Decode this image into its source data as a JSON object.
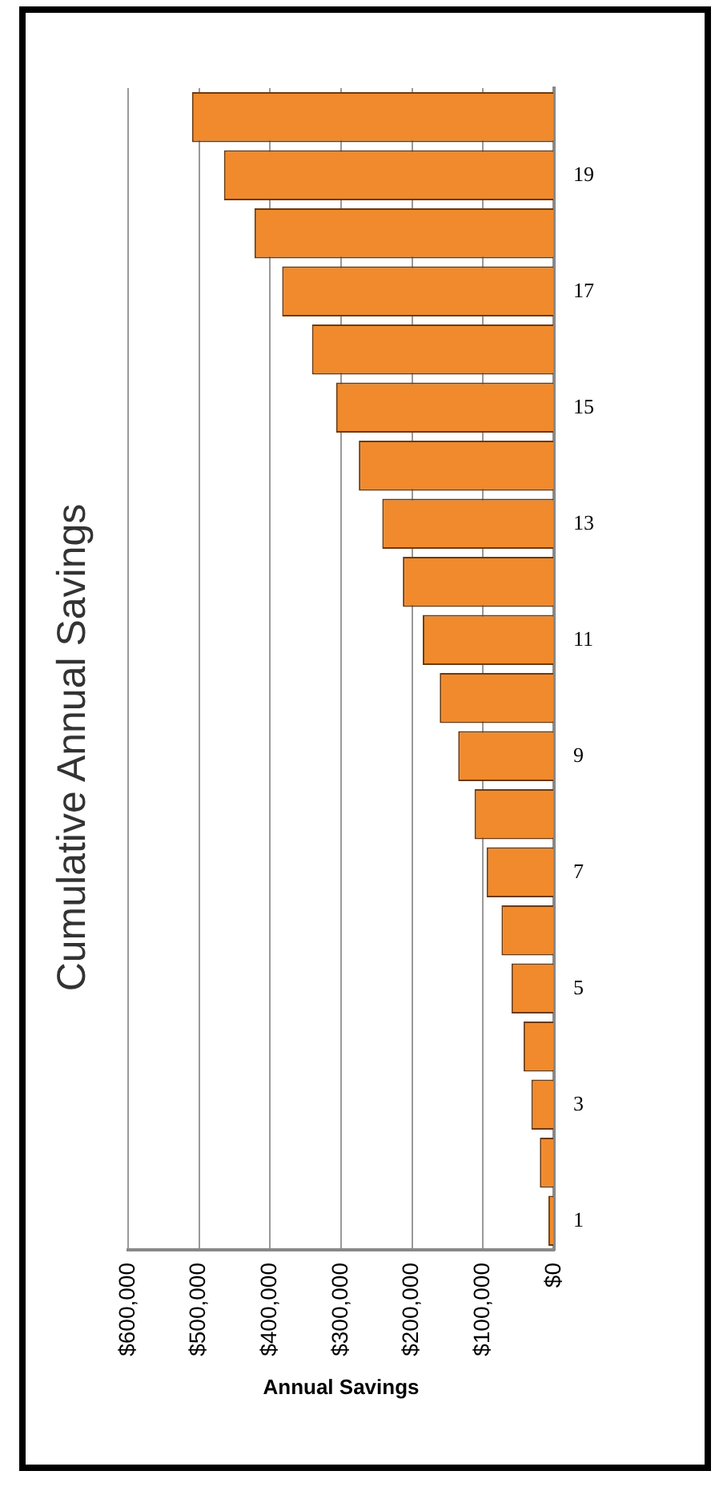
{
  "chart_data": {
    "type": "bar",
    "orientation": "horizontal",
    "title": "Cumulative Annual Savings",
    "xlabel": "Annual Savings",
    "categories": [
      null,
      "19",
      null,
      "17",
      null,
      "15",
      null,
      "13",
      null,
      "11",
      null,
      "9",
      null,
      "7",
      null,
      "5",
      null,
      "3",
      null,
      "1"
    ],
    "values": [
      510000,
      465000,
      422000,
      383000,
      341000,
      307000,
      275000,
      242000,
      213000,
      185000,
      161000,
      135000,
      112000,
      95000,
      74000,
      60000,
      43000,
      32000,
      20000,
      8000
    ],
    "color": "#f08a2c",
    "xlim": [
      600000,
      0
    ],
    "xticks": [
      {
        "value": 600000,
        "label": "$600,000"
      },
      {
        "value": 500000,
        "label": "$500,000"
      },
      {
        "value": 400000,
        "label": "$400,000"
      },
      {
        "value": 300000,
        "label": "$300,000"
      },
      {
        "value": 200000,
        "label": "$200,000"
      },
      {
        "value": 100000,
        "label": "$100,000"
      },
      {
        "value": 0,
        "label": "$0"
      }
    ],
    "grid": "x"
  }
}
